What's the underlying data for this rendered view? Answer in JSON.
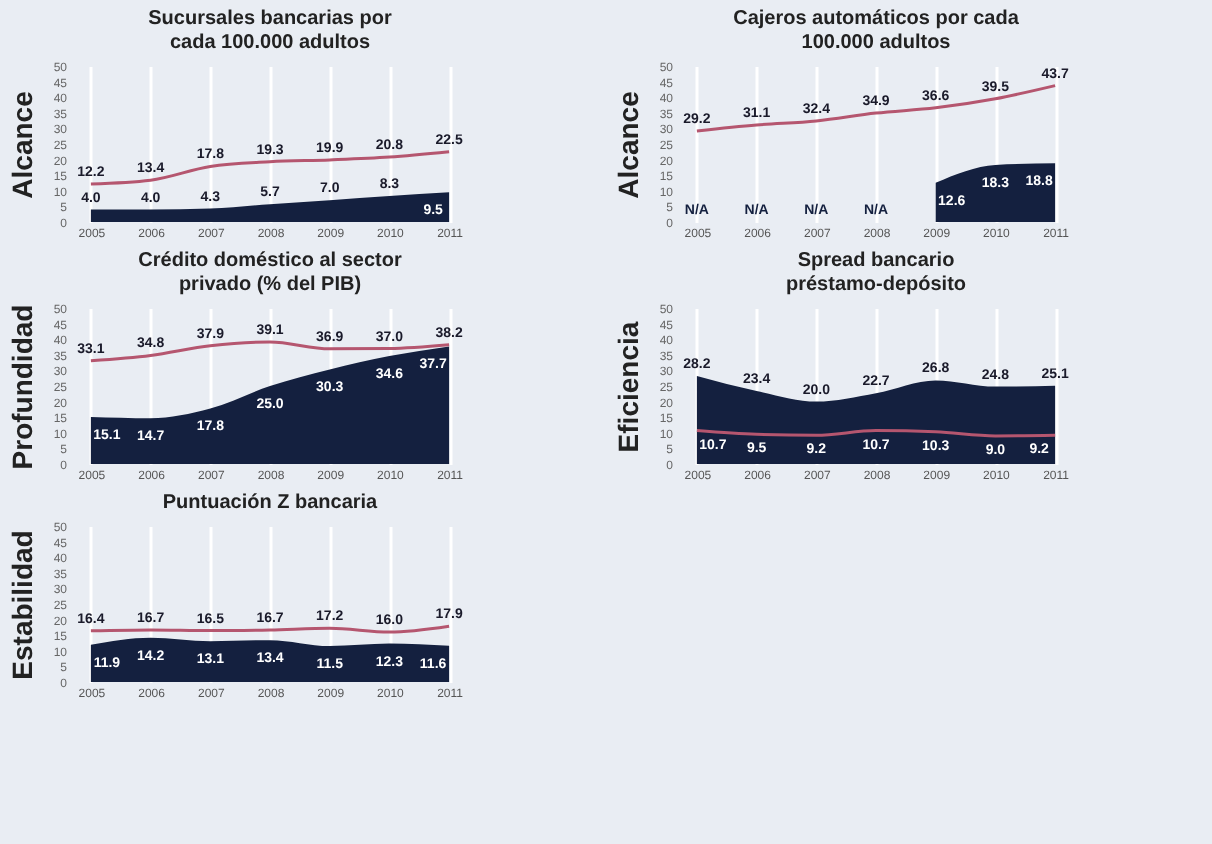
{
  "chart_data": [
    {
      "type": "area",
      "title": "Sucursales bancarias por cada 100.000 adultos",
      "ylabel": "Alcance",
      "categories": [
        "2005",
        "2006",
        "2007",
        "2008",
        "2009",
        "2010",
        "2011"
      ],
      "ylim": [
        0,
        50
      ],
      "yticks": [
        0,
        5,
        10,
        15,
        20,
        25,
        30,
        35,
        40,
        45,
        50
      ],
      "grid": "x",
      "series": [
        {
          "color": "#14203f",
          "values": [
            4.0,
            4.0,
            4.3,
            5.7,
            7.0,
            8.3,
            9.5
          ],
          "value_labels": [
            "4.0",
            "4.0",
            "4.3",
            "5.7",
            "7.0",
            "8.3",
            "9.5"
          ]
        },
        {
          "type": "line",
          "color": "#b5566f",
          "values": [
            12.2,
            13.4,
            17.8,
            19.3,
            19.9,
            20.8,
            22.5
          ],
          "value_labels": [
            "12.2",
            "13.4",
            "17.8",
            "19.3",
            "19.9",
            "20.8",
            "22.5"
          ]
        }
      ]
    },
    {
      "type": "area",
      "title": "Cajeros automáticos por cada 100.000 adultos",
      "ylabel": "Alcance",
      "categories": [
        "2005",
        "2006",
        "2007",
        "2008",
        "2009",
        "2010",
        "2011"
      ],
      "ylim": [
        0,
        50
      ],
      "yticks": [
        0,
        5,
        10,
        15,
        20,
        25,
        30,
        35,
        40,
        45,
        50
      ],
      "grid": "x",
      "series": [
        {
          "color": "#14203f",
          "values": [
            null,
            null,
            null,
            null,
            12.6,
            18.3,
            18.8
          ],
          "value_labels": [
            "N/A",
            "N/A",
            "N/A",
            "N/A",
            "12.6",
            "18.3",
            "18.8"
          ]
        },
        {
          "type": "line",
          "color": "#b5566f",
          "values": [
            29.2,
            31.1,
            32.4,
            34.9,
            36.6,
            39.5,
            43.7
          ],
          "value_labels": [
            "29.2",
            "31.1",
            "32.4",
            "34.9",
            "36.6",
            "39.5",
            "43.7"
          ]
        }
      ]
    },
    {
      "type": "area",
      "title": "Crédito doméstico al sector privado (% del PIB)",
      "ylabel": "Profundidad",
      "categories": [
        "2005",
        "2006",
        "2007",
        "2008",
        "2009",
        "2010",
        "2011"
      ],
      "ylim": [
        0,
        50
      ],
      "yticks": [
        0,
        5,
        10,
        15,
        20,
        25,
        30,
        35,
        40,
        45,
        50
      ],
      "grid": "x",
      "series": [
        {
          "color": "#14203f",
          "values": [
            15.1,
            14.7,
            17.8,
            25.0,
            30.3,
            34.6,
            37.7
          ],
          "value_labels": [
            "15.1",
            "14.7",
            "17.8",
            "25.0",
            "30.3",
            "34.6",
            "37.7"
          ]
        },
        {
          "type": "line",
          "color": "#b5566f",
          "values": [
            33.1,
            34.8,
            37.9,
            39.1,
            36.9,
            37.0,
            38.2
          ],
          "value_labels": [
            "33.1",
            "34.8",
            "37.9",
            "39.1",
            "36.9",
            "37.0",
            "38.2"
          ]
        }
      ]
    },
    {
      "type": "area",
      "title": "Spread bancario préstamo-depósito",
      "ylabel": "Eficiencia",
      "categories": [
        "2005",
        "2006",
        "2007",
        "2008",
        "2009",
        "2010",
        "2011"
      ],
      "ylim": [
        0,
        50
      ],
      "yticks": [
        0,
        5,
        10,
        15,
        20,
        25,
        30,
        35,
        40,
        45,
        50
      ],
      "grid": "x",
      "series": [
        {
          "color": "#14203f",
          "values": [
            28.2,
            23.4,
            20.0,
            22.7,
            26.8,
            24.8,
            25.1
          ],
          "value_labels": [
            "28.2",
            "23.4",
            "20.0",
            "22.7",
            "26.8",
            "24.8",
            "25.1"
          ]
        },
        {
          "type": "line",
          "color": "#b5566f",
          "values": [
            10.7,
            9.5,
            9.2,
            10.7,
            10.3,
            9.0,
            9.2
          ],
          "value_labels": [
            "10.7",
            "9.5",
            "9.2",
            "10.7",
            "10.3",
            "9.0",
            "9.2"
          ]
        }
      ]
    },
    {
      "type": "area",
      "title": "Puntuación Z bancaria",
      "ylabel": "Estabilidad",
      "categories": [
        "2005",
        "2006",
        "2007",
        "2008",
        "2009",
        "2010",
        "2011"
      ],
      "ylim": [
        0,
        50
      ],
      "yticks": [
        0,
        5,
        10,
        15,
        20,
        25,
        30,
        35,
        40,
        45,
        50
      ],
      "grid": "x",
      "series": [
        {
          "color": "#14203f",
          "values": [
            11.9,
            14.2,
            13.1,
            13.4,
            11.5,
            12.3,
            11.6
          ],
          "value_labels": [
            "11.9",
            "14.2",
            "13.1",
            "13.4",
            "11.5",
            "12.3",
            "11.6"
          ]
        },
        {
          "type": "line",
          "color": "#b5566f",
          "values": [
            16.4,
            16.7,
            16.5,
            16.7,
            17.2,
            16.0,
            17.9
          ],
          "value_labels": [
            "16.4",
            "16.7",
            "16.5",
            "16.7",
            "17.2",
            "16.0",
            "17.9"
          ]
        }
      ]
    }
  ]
}
